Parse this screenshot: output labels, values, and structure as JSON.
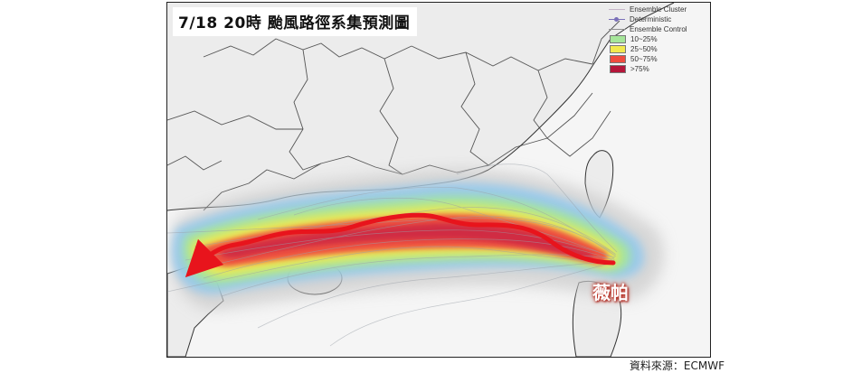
{
  "title": "7/18 20時 颱風路徑系集預測圖",
  "storm_name": "薇帕",
  "source": "資料來源：ECMWF",
  "legend": {
    "lines": [
      {
        "label": "Ensemble Cluster",
        "color": "#c7b6c9",
        "marker": false
      },
      {
        "label": "Deterministic",
        "color": "#7a70b8",
        "marker": true
      },
      {
        "label": "Ensemble Control",
        "color": "#8e8e8e",
        "marker": false
      }
    ],
    "probability_bins": [
      {
        "label": "10~25%",
        "color": "#a6e69a"
      },
      {
        "label": "25~50%",
        "color": "#f2e94e"
      },
      {
        "label": "50~75%",
        "color": "#ef4b3f"
      },
      {
        "label": ">75%",
        "color": "#b5163a"
      }
    ]
  },
  "track_arrow_color": "#e8141c",
  "land_color": "#ececec",
  "sea_color": "#f5f5f5"
}
